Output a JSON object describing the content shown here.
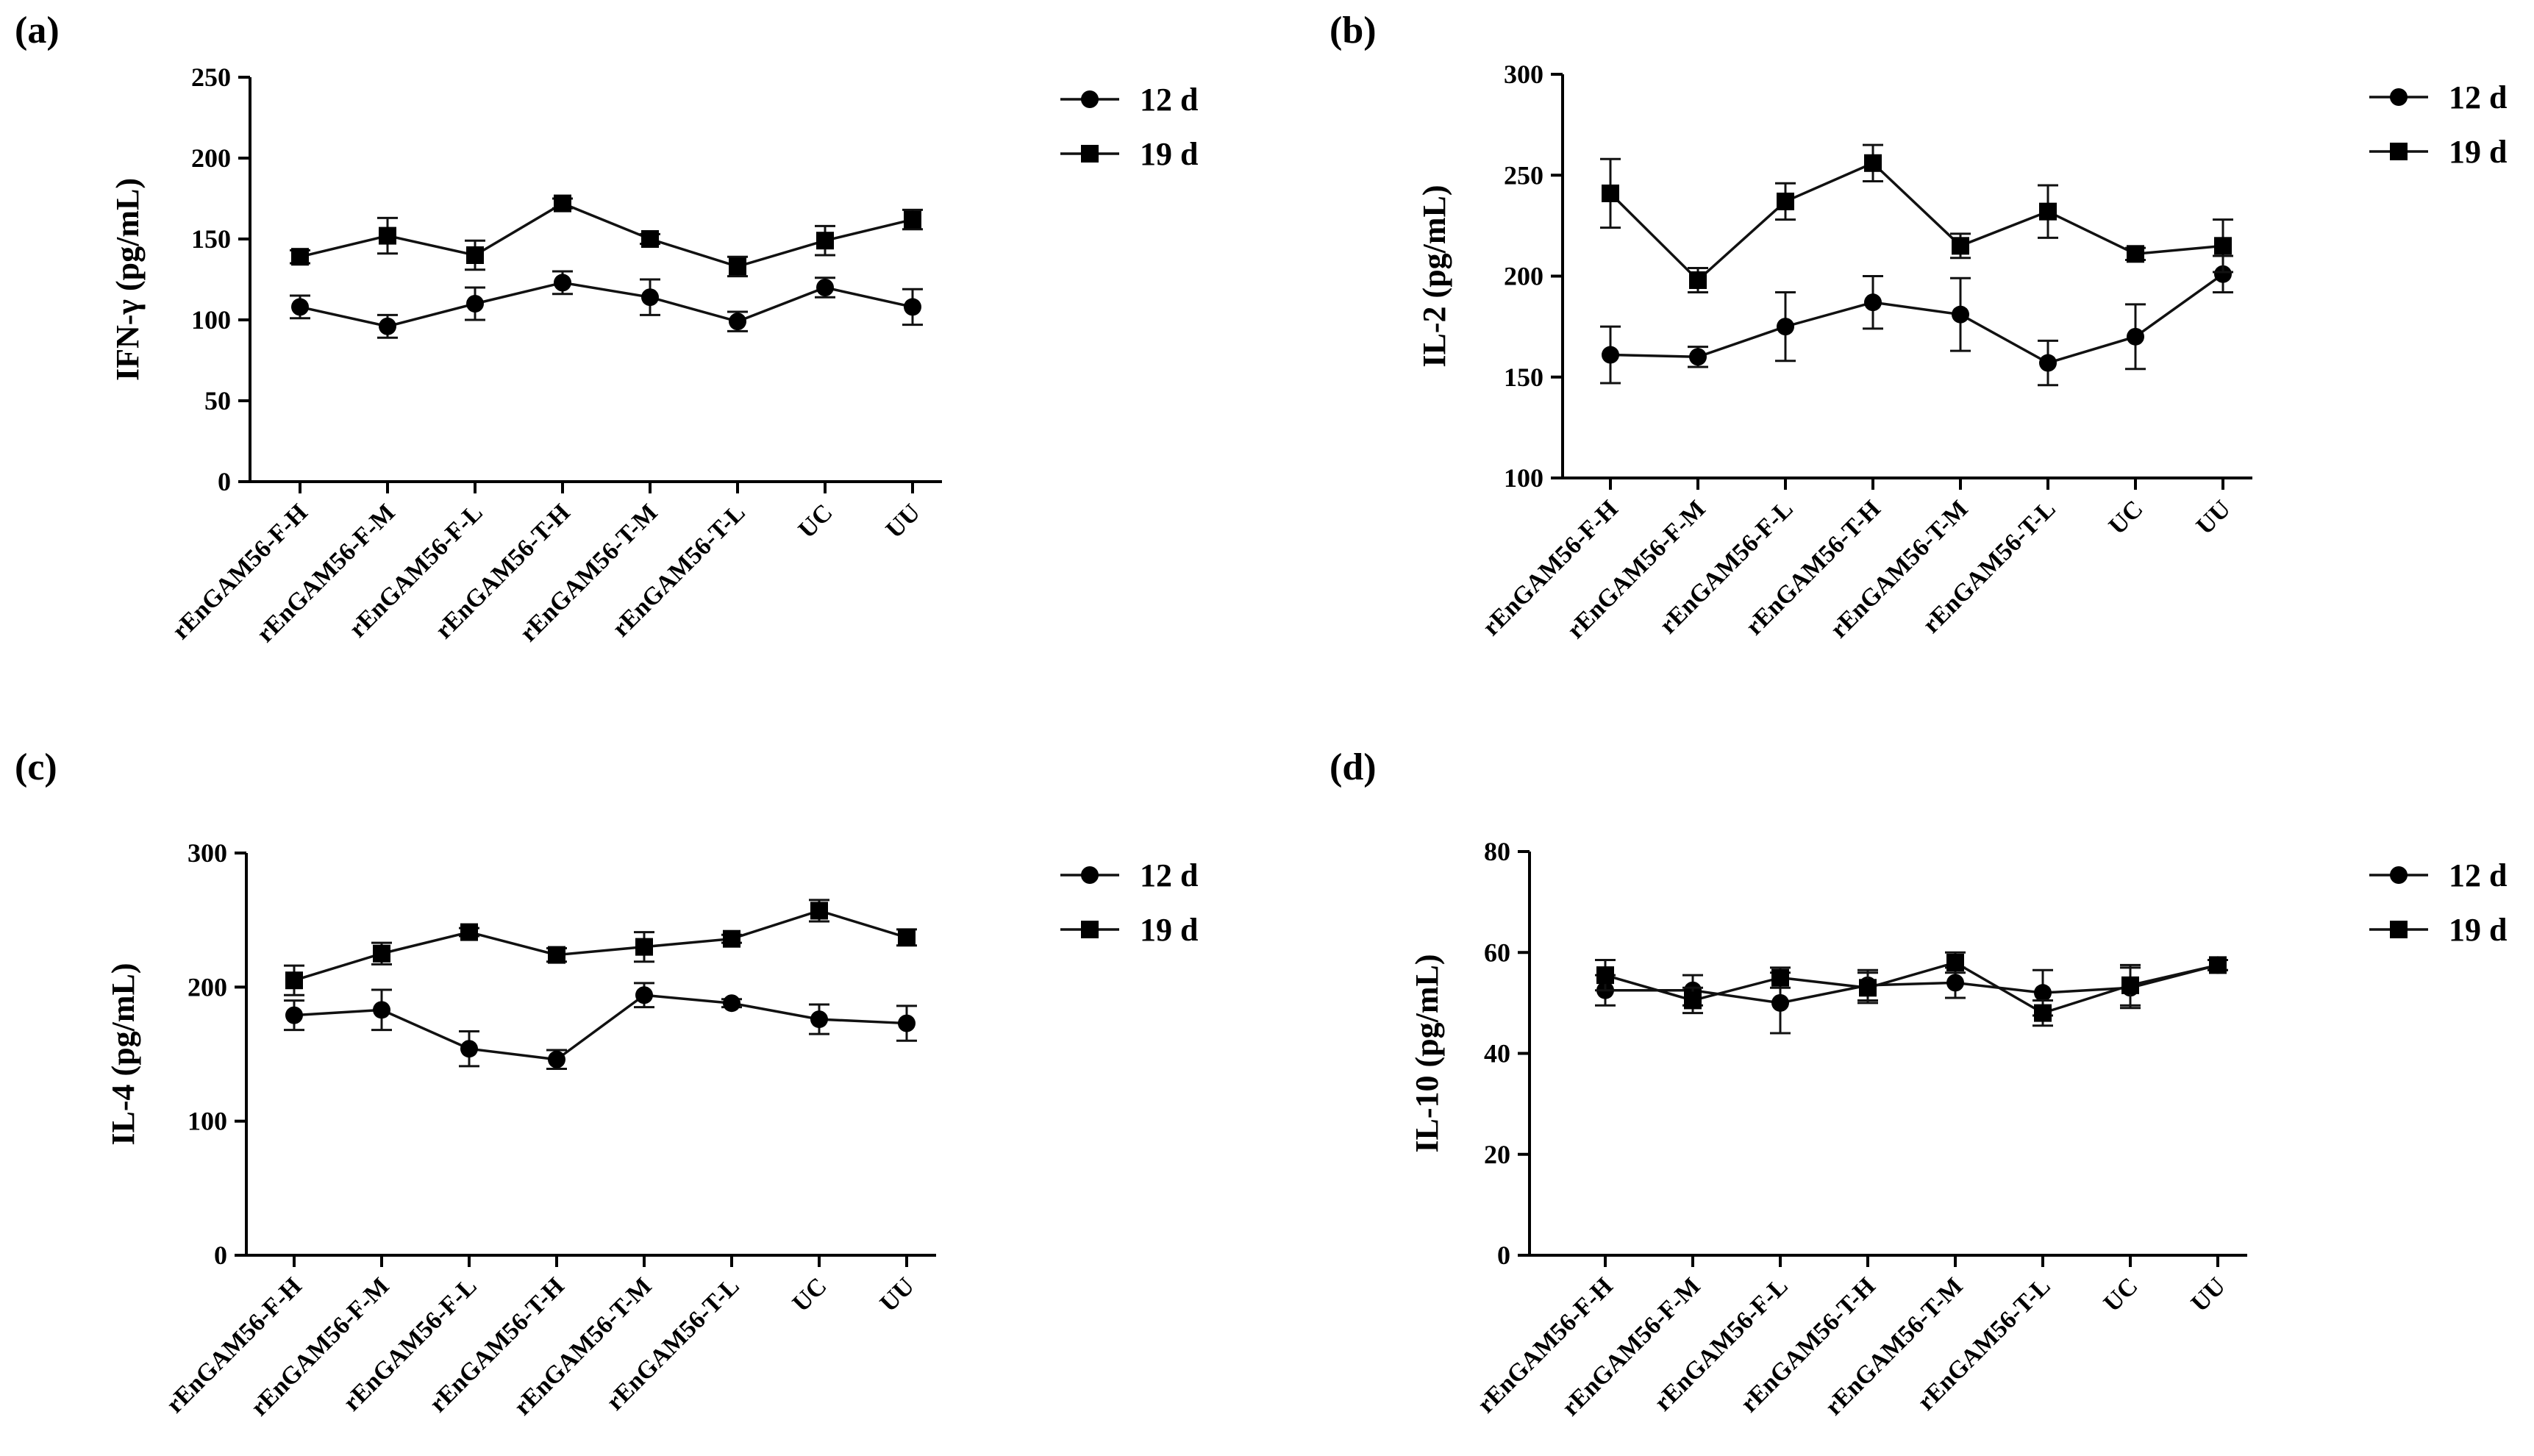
{
  "chart_data": [
    {
      "panel": "(a)",
      "type": "line",
      "ylabel": "IFN-γ (pg/mL)",
      "ylim": [
        0,
        250
      ],
      "yticks": [
        0,
        50,
        100,
        150,
        200,
        250
      ],
      "categories": [
        "rEnGAM56-F-H",
        "rEnGAM56-F-M",
        "rEnGAM56-F-L",
        "rEnGAM56-T-H",
        "rEnGAM56-T-M",
        "rEnGAM56-T-L",
        "UC",
        "UU"
      ],
      "legend_position": "right",
      "series": [
        {
          "name": "12 d",
          "marker": "circle",
          "values": [
            108,
            96,
            110,
            123,
            114,
            99,
            120,
            108
          ],
          "errors": [
            7,
            7,
            10,
            7,
            11,
            6,
            6,
            11
          ]
        },
        {
          "name": "19 d",
          "marker": "square",
          "values": [
            139,
            152,
            140,
            172,
            150,
            133,
            149,
            162
          ],
          "errors": [
            4,
            11,
            9,
            3,
            3,
            6,
            9,
            6
          ]
        }
      ]
    },
    {
      "panel": "(b)",
      "type": "line",
      "ylabel": "IL-2 (pg/mL)",
      "ylim": [
        100,
        300
      ],
      "yticks": [
        100,
        150,
        200,
        250,
        300
      ],
      "categories": [
        "rEnGAM56-F-H",
        "rEnGAM56-F-M",
        "rEnGAM56-F-L",
        "rEnGAM56-T-H",
        "rEnGAM56-T-M",
        "rEnGAM56-T-L",
        "UC",
        "UU"
      ],
      "legend_position": "right",
      "series": [
        {
          "name": "12 d",
          "marker": "circle",
          "values": [
            161,
            160,
            175,
            187,
            181,
            157,
            170,
            201
          ],
          "errors": [
            14,
            5,
            17,
            13,
            18,
            11,
            16,
            9
          ]
        },
        {
          "name": "19 d",
          "marker": "square",
          "values": [
            241,
            198,
            237,
            256,
            215,
            232,
            211,
            215
          ],
          "errors": [
            17,
            6,
            9,
            9,
            6,
            13,
            3,
            13
          ]
        }
      ]
    },
    {
      "panel": "(c)",
      "type": "line",
      "ylabel": "IL-4 (pg/mL)",
      "ylim": [
        0,
        300
      ],
      "yticks": [
        0,
        100,
        200,
        300
      ],
      "categories": [
        "rEnGAM56-F-H",
        "rEnGAM56-F-M",
        "rEnGAM56-F-L",
        "rEnGAM56-T-H",
        "rEnGAM56-T-M",
        "rEnGAM56-T-L",
        "UC",
        "UU"
      ],
      "legend_position": "right",
      "series": [
        {
          "name": "12 d",
          "marker": "circle",
          "values": [
            179,
            183,
            154,
            146,
            194,
            188,
            176,
            173
          ],
          "errors": [
            11,
            15,
            13,
            7,
            9,
            3,
            11,
            13
          ]
        },
        {
          "name": "19 d",
          "marker": "square",
          "values": [
            205,
            225,
            241,
            224,
            230,
            236,
            257,
            237
          ],
          "errors": [
            11,
            8,
            3,
            5,
            11,
            3,
            8,
            6
          ]
        }
      ]
    },
    {
      "panel": "(d)",
      "type": "line",
      "ylabel": "IL-10 (pg/mL)",
      "ylim": [
        0,
        80
      ],
      "yticks": [
        0,
        20,
        40,
        60,
        80
      ],
      "categories": [
        "rEnGAM56-F-H",
        "rEnGAM56-F-M",
        "rEnGAM56-F-L",
        "rEnGAM56-T-H",
        "rEnGAM56-T-M",
        "rEnGAM56-T-L",
        "UC",
        "UU"
      ],
      "legend_position": "right",
      "series": [
        {
          "name": "12 d",
          "marker": "circle",
          "values": [
            52.5,
            52.5,
            50,
            53.5,
            54,
            52,
            53,
            57.5
          ],
          "errors": [
            3,
            3,
            6,
            3,
            3,
            4.5,
            4,
            1
          ]
        },
        {
          "name": "19 d",
          "marker": "square",
          "values": [
            55.5,
            50.5,
            55,
            53,
            58,
            48,
            53.5,
            57.5
          ],
          "errors": [
            3,
            2.5,
            2,
            3,
            2,
            2.5,
            4,
            1
          ]
        }
      ]
    }
  ]
}
